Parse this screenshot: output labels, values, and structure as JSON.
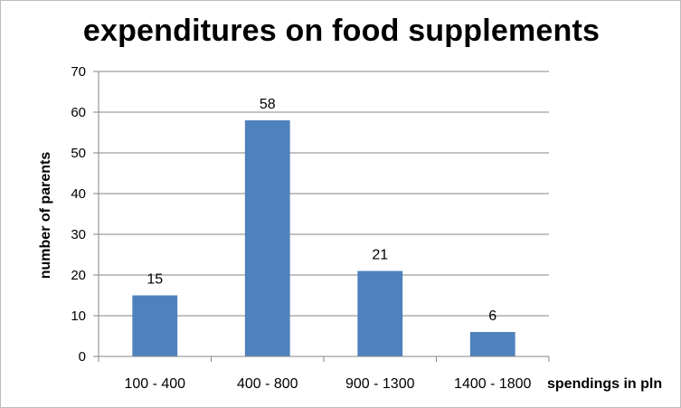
{
  "chart_data": {
    "type": "bar",
    "title": "expenditures on food supplements",
    "xlabel": "spendings in pln",
    "ylabel": "number of parents",
    "categories": [
      "100 - 400",
      "400 - 800",
      "900 - 1300",
      "1400 - 1800"
    ],
    "values": [
      15,
      58,
      21,
      6
    ],
    "data_labels": [
      "15",
      "58",
      "21",
      "6"
    ],
    "ylim": [
      0,
      70
    ],
    "yticks": [
      0,
      10,
      20,
      30,
      40,
      50,
      60,
      70
    ],
    "ytick_labels": [
      "0",
      "10",
      "20",
      "30",
      "40",
      "50",
      "60",
      "70"
    ],
    "grid": true,
    "legend": "none",
    "bar_color": "#4f81bd",
    "gridline_color": "#868686"
  }
}
